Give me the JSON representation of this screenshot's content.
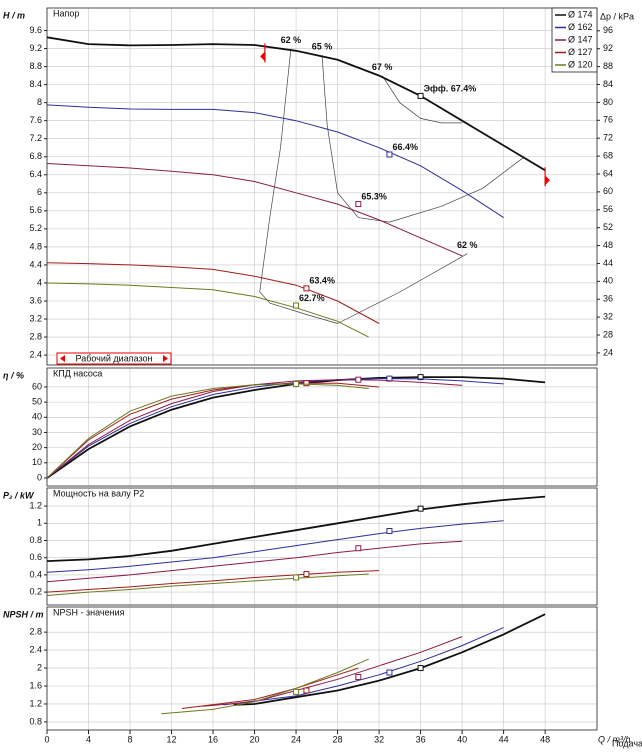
{
  "chart_data": {
    "type": "line",
    "xlabel": "Q / m³/h",
    "xlabel2": "Подача",
    "xlim": [
      0,
      53
    ],
    "xticks": [
      0,
      4,
      8,
      12,
      16,
      20,
      24,
      28,
      32,
      36,
      40,
      44,
      48
    ],
    "grid": true,
    "legend": "upper right",
    "y2label": "Δp / kPa",
    "y2lim": [
      21.3,
      101.1
    ],
    "y2ticks": [
      24,
      28,
      32,
      36,
      40,
      44,
      48,
      52,
      56,
      60,
      64,
      68,
      72,
      76,
      80,
      84,
      88,
      92,
      96
    ],
    "operating_range": {
      "label": "Рабочий диапазон",
      "x": [
        21,
        48
      ]
    },
    "panels": [
      {
        "key": "head",
        "title": "Напор",
        "ylabel": "H / m",
        "ylim": [
          2.18,
          10.1
        ],
        "yticks": [
          2.4,
          2.8,
          3.2,
          3.6,
          4,
          4.4,
          4.8,
          5.2,
          5.6,
          6,
          6.4,
          6.8,
          7.2,
          7.6,
          8,
          8.4,
          8.8,
          9.2,
          9.6
        ]
      },
      {
        "key": "eta",
        "title": "КПД насоса",
        "ylabel": "η / %",
        "ylim": [
          -5.3,
          72.5
        ],
        "yticks": [
          0,
          10,
          20,
          30,
          40,
          50,
          60
        ]
      },
      {
        "key": "power",
        "title": "Мощность на валу P2",
        "ylabel": "P₂ / kW",
        "ylim": [
          0.05,
          1.41
        ],
        "yticks": [
          0.2,
          0.4,
          0.6,
          0.8,
          1,
          1.2
        ]
      },
      {
        "key": "npsh",
        "title": "NPSH - значения",
        "ylabel": "NPSH / m",
        "ylim": [
          0.62,
          3.36
        ],
        "yticks": [
          0.8,
          1.2,
          1.6,
          2,
          2.4,
          2.8
        ]
      }
    ],
    "series": [
      {
        "name": "Ø 174",
        "color": "#111111",
        "x": [
          0,
          4,
          8,
          12,
          16,
          20,
          24,
          28,
          32,
          36,
          40,
          44,
          48
        ],
        "head": [
          9.45,
          9.3,
          9.27,
          9.28,
          9.3,
          9.28,
          9.15,
          8.95,
          8.6,
          8.15,
          7.6,
          7.05,
          6.5
        ],
        "eta": [
          0,
          19,
          34,
          45,
          53,
          58,
          62,
          64.5,
          66,
          66.5,
          66.5,
          65.5,
          63
        ],
        "power": [
          0.56,
          0.58,
          0.62,
          0.68,
          0.76,
          0.84,
          0.92,
          1.0,
          1.08,
          1.16,
          1.22,
          1.27,
          1.31
        ],
        "npsh_x": [
          18,
          20,
          24,
          28,
          32,
          36,
          40,
          44,
          48
        ],
        "npsh": [
          1.18,
          1.2,
          1.35,
          1.5,
          1.72,
          2.0,
          2.35,
          2.75,
          3.2
        ],
        "point": {
          "x": 36,
          "head": 8.15,
          "eta": 66.5,
          "power": 1.17,
          "npsh": 2.0,
          "label": "Эфф.  67.4%"
        }
      },
      {
        "name": "Ø 162",
        "color": "#2e2e9e",
        "x": [
          0,
          4,
          8,
          12,
          16,
          20,
          24,
          28,
          32,
          36,
          40,
          44
        ],
        "head": [
          7.95,
          7.9,
          7.86,
          7.85,
          7.85,
          7.78,
          7.6,
          7.35,
          7.0,
          6.6,
          6.05,
          5.45
        ],
        "eta": [
          0,
          21,
          36,
          47,
          55,
          60,
          63,
          64.8,
          65.5,
          65.3,
          64,
          62
        ],
        "power": [
          0.43,
          0.46,
          0.5,
          0.55,
          0.6,
          0.67,
          0.74,
          0.81,
          0.88,
          0.94,
          0.99,
          1.03
        ],
        "npsh_x": [
          17,
          24,
          28,
          32,
          36,
          40,
          44
        ],
        "npsh": [
          1.18,
          1.38,
          1.6,
          1.85,
          2.15,
          2.5,
          2.9
        ],
        "point": {
          "x": 33,
          "head": 6.85,
          "eta": 65.5,
          "power": 0.91,
          "npsh": 1.9,
          "label": "66.4%"
        }
      },
      {
        "name": "Ø 147",
        "color": "#8c1c4c",
        "x": [
          0,
          4,
          8,
          12,
          16,
          20,
          24,
          28,
          32,
          36,
          40
        ],
        "head": [
          6.65,
          6.6,
          6.55,
          6.48,
          6.4,
          6.25,
          6.0,
          5.75,
          5.4,
          5.0,
          4.6
        ],
        "eta": [
          0,
          22,
          38,
          49,
          57,
          61.5,
          64,
          64.8,
          64.5,
          63,
          61
        ],
        "power": [
          0.32,
          0.36,
          0.4,
          0.45,
          0.5,
          0.55,
          0.6,
          0.66,
          0.71,
          0.76,
          0.79
        ],
        "npsh_x": [
          15,
          20,
          24,
          28,
          32,
          36,
          40
        ],
        "npsh": [
          1.15,
          1.25,
          1.5,
          1.75,
          2.05,
          2.35,
          2.7
        ],
        "point": {
          "x": 30,
          "head": 5.75,
          "eta": 64.8,
          "power": 0.71,
          "npsh": 1.8,
          "label": "65.3%"
        }
      },
      {
        "name": "Ø 127",
        "color": "#a01c1c",
        "x": [
          0,
          4,
          8,
          12,
          16,
          20,
          24,
          28,
          32
        ],
        "head": [
          4.45,
          4.43,
          4.4,
          4.36,
          4.3,
          4.15,
          3.95,
          3.6,
          3.1
        ],
        "eta": [
          0,
          25,
          42,
          52,
          58,
          61.5,
          62.5,
          62.5,
          60
        ],
        "power": [
          0.2,
          0.23,
          0.26,
          0.3,
          0.33,
          0.37,
          0.4,
          0.43,
          0.45
        ],
        "npsh_x": [
          13,
          20,
          24,
          28,
          30
        ],
        "npsh": [
          1.1,
          1.3,
          1.55,
          1.85,
          2.0
        ],
        "point": {
          "x": 25,
          "head": 3.88,
          "eta": 62.5,
          "power": 0.41,
          "npsh": 1.5,
          "label": "63.4%"
        }
      },
      {
        "name": "Ø 120",
        "color": "#6e7a1c",
        "x": [
          0,
          4,
          8,
          12,
          16,
          20,
          24,
          28,
          31
        ],
        "head": [
          4.0,
          3.98,
          3.95,
          3.9,
          3.85,
          3.7,
          3.45,
          3.15,
          2.8
        ],
        "eta": [
          0,
          26,
          44,
          54,
          59,
          61.5,
          62,
          61,
          59
        ],
        "power": [
          0.16,
          0.2,
          0.23,
          0.27,
          0.3,
          0.33,
          0.36,
          0.39,
          0.41
        ],
        "npsh_x": [
          11,
          16,
          20,
          24,
          28,
          31
        ],
        "npsh": [
          0.98,
          1.08,
          1.25,
          1.55,
          1.9,
          2.2
        ],
        "point": {
          "x": 24,
          "head": 3.5,
          "eta": 62,
          "power": 0.37,
          "npsh": 1.47,
          "label": "62.7%"
        }
      }
    ],
    "iso_lines": [
      {
        "label": "62 %",
        "x": [
          23.5,
          22.5,
          21.5,
          20.5,
          21.5,
          25,
          28
        ],
        "y": [
          9.2,
          7,
          5.5,
          3.8,
          3.55,
          3.3,
          3.1
        ]
      },
      {
        "label": "62 %",
        "x": [
          40.5,
          34,
          28
        ],
        "y": [
          4.65,
          3.8,
          3.1
        ]
      },
      {
        "label": "65 %",
        "x": [
          26.5,
          27,
          28,
          30,
          33,
          38,
          42,
          46
        ],
        "y": [
          9.05,
          7.5,
          6.0,
          5.45,
          5.35,
          5.7,
          6.1,
          6.8
        ]
      },
      {
        "label": "67 %",
        "x": [
          32.3,
          34,
          36,
          38,
          40
        ],
        "y": [
          8.6,
          8.0,
          7.65,
          7.55,
          7.55
        ]
      }
    ]
  }
}
